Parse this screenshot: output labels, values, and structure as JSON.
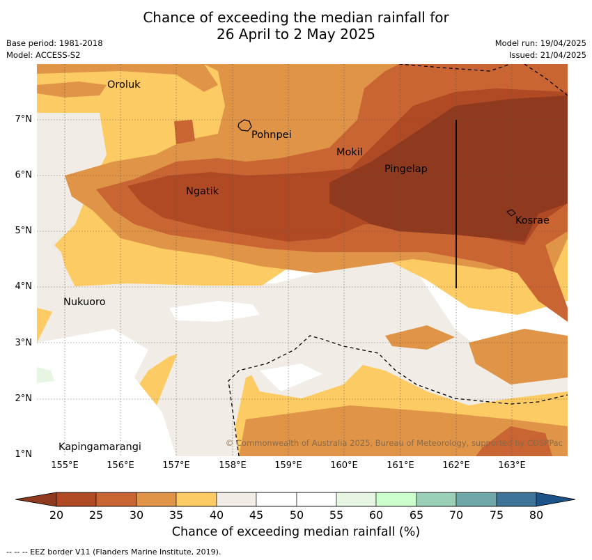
{
  "title_line1": "Chance of exceeding the median rainfall for",
  "title_line2": "26 April to 2 May 2025",
  "meta": {
    "base_period": "Base period: 1981-2018",
    "model": "Model: ACCESS-S2",
    "model_run": "Model run: 19/04/2025",
    "issued": "Issued: 21/04/2025"
  },
  "map": {
    "lon_labels": [
      "155°E",
      "156°E",
      "157°E",
      "158°E",
      "159°E",
      "160°E",
      "161°E",
      "162°E",
      "163°E"
    ],
    "lat_labels": [
      "7°N",
      "6°N",
      "5°N",
      "4°N",
      "3°N",
      "2°N",
      "1°N"
    ],
    "places": [
      "Oroluk",
      "Pohnpei",
      "Mokil",
      "Pingelap",
      "Ngatik",
      "Kosrae",
      "Nukuoro",
      "Kapingamarangi"
    ],
    "copyright": "© Commonwealth of Australia 2025, Bureau of Meteorology, supported by COSPPac"
  },
  "colorbar": {
    "title": "Chance of exceeding median rainfall (%)",
    "labels": [
      "20",
      "25",
      "30",
      "35",
      "40",
      "45",
      "50",
      "55",
      "60",
      "65",
      "70",
      "75",
      "80"
    ],
    "colors": [
      "#8f3a1f",
      "#b04a24",
      "#c96433",
      "#df9447",
      "#fdcb63",
      "#f1ece6",
      "#ffffff",
      "#ffffff",
      "#e7f5e3",
      "#ccffcc",
      "#9acfb8",
      "#6fa7a9",
      "#3e7497",
      "#1c5388"
    ]
  },
  "footnote": "--  --  -- EEZ border V11 (Flanders Marine Institute, 2019)."
}
